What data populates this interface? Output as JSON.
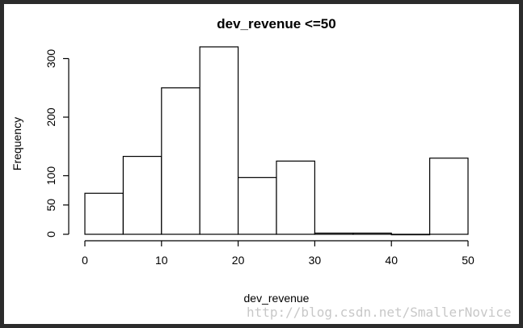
{
  "chart_data": {
    "type": "bar",
    "title": "dev_revenue <=50",
    "xlabel": "dev_revenue",
    "ylabel": "Frequency",
    "bin_edges": [
      0,
      5,
      10,
      15,
      20,
      25,
      30,
      35,
      40,
      45,
      50
    ],
    "values": [
      70,
      133,
      250,
      320,
      97,
      125,
      2,
      2,
      0,
      130
    ],
    "xlim": [
      0,
      50
    ],
    "ylim": [
      0,
      320
    ],
    "x_ticks": [
      "0",
      "10",
      "20",
      "30",
      "40",
      "50"
    ],
    "y_ticks": [
      "0",
      "50",
      "100",
      "200",
      "300"
    ],
    "grid": false
  },
  "watermark": "http://blog.csdn.net/SmallerNovice"
}
